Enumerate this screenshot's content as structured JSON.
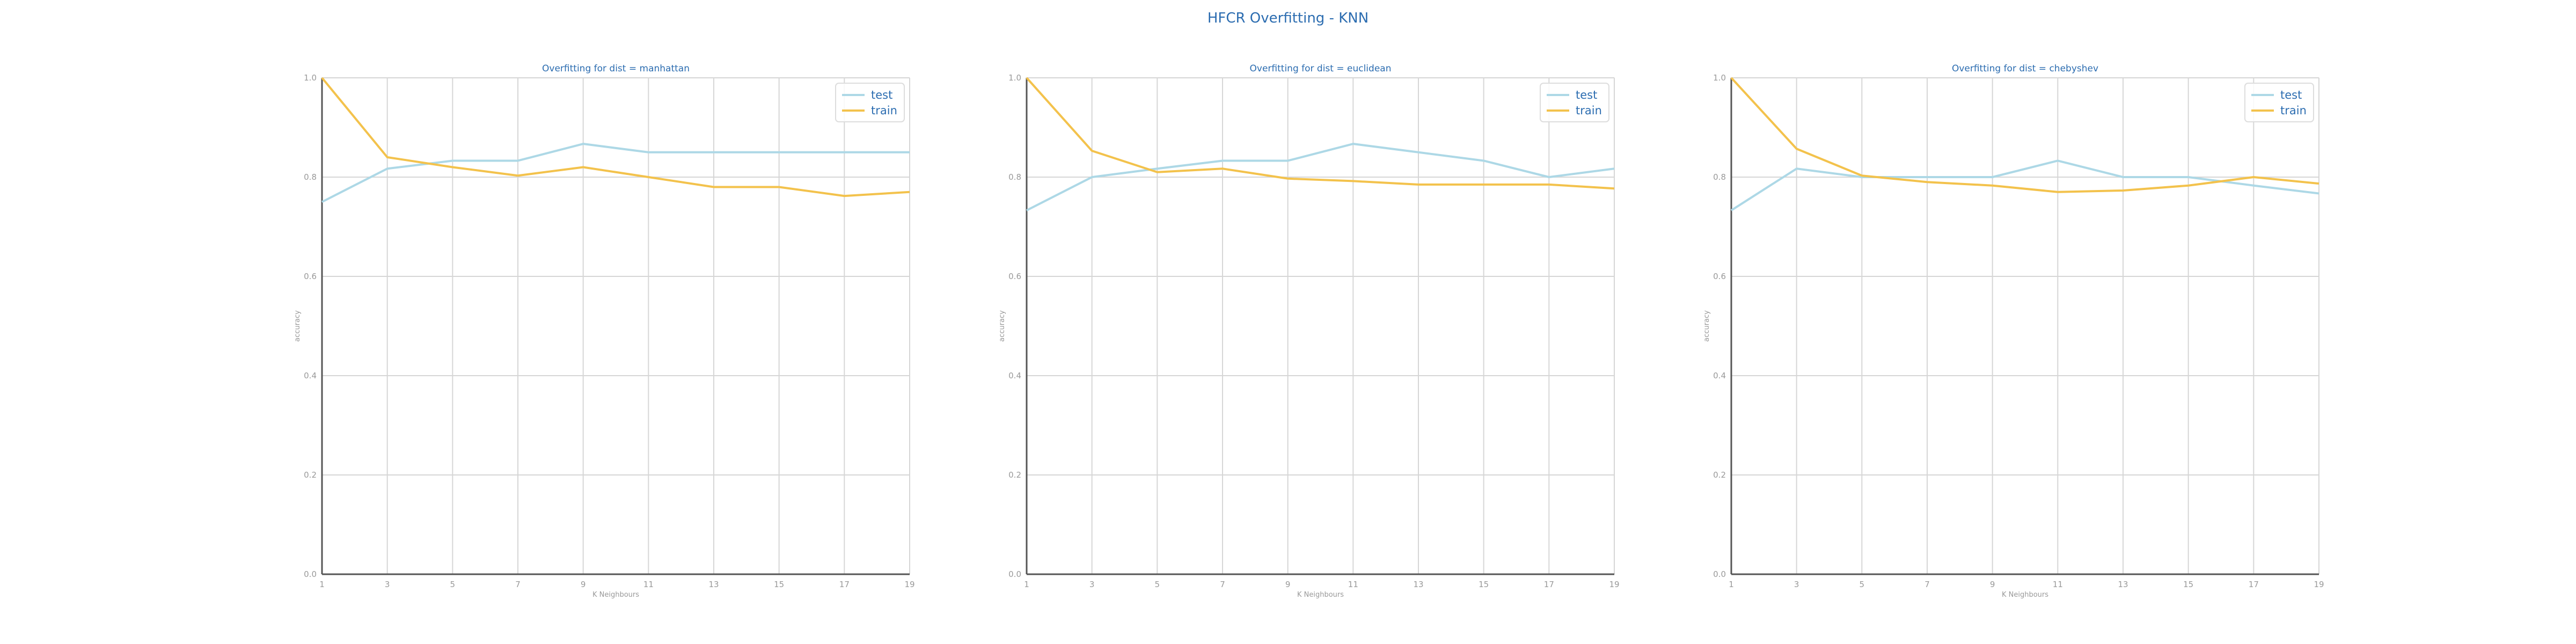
{
  "figure": {
    "title": "HFCR Overfitting - KNN",
    "title_color": "#2b6cb0",
    "colors": {
      "test": "#add8e6",
      "train": "#f3c24c",
      "axis_text": "#999999",
      "grid": "#d6d6d6",
      "panel_title": "#2b6cb0",
      "spine": "#555555"
    }
  },
  "chart_data": [
    {
      "type": "line",
      "title": "Overfitting for dist = manhattan",
      "xlabel": "K Neighbours",
      "ylabel": "accuracy",
      "xlim": [
        1,
        19
      ],
      "ylim": [
        0.0,
        1.0
      ],
      "x": [
        1,
        3,
        5,
        7,
        9,
        11,
        13,
        15,
        17,
        19
      ],
      "xticks": [
        "1",
        "3",
        "5",
        "7",
        "9",
        "11",
        "13",
        "15",
        "17",
        "19"
      ],
      "yticks": [
        "0.0",
        "0.2",
        "0.4",
        "0.6",
        "0.8",
        "1.0"
      ],
      "grid": true,
      "legend": "top-right",
      "series": [
        {
          "name": "test",
          "color": "#add8e6",
          "values": [
            0.75,
            0.817,
            0.833,
            0.833,
            0.867,
            0.85,
            0.85,
            0.85,
            0.85,
            0.85
          ]
        },
        {
          "name": "train",
          "color": "#f3c24c",
          "values": [
            1.0,
            0.84,
            0.82,
            0.803,
            0.82,
            0.8,
            0.78,
            0.78,
            0.762,
            0.77
          ]
        }
      ]
    },
    {
      "type": "line",
      "title": "Overfitting for dist = euclidean",
      "xlabel": "K Neighbours",
      "ylabel": "accuracy",
      "xlim": [
        1,
        19
      ],
      "ylim": [
        0.0,
        1.0
      ],
      "x": [
        1,
        3,
        5,
        7,
        9,
        11,
        13,
        15,
        17,
        19
      ],
      "xticks": [
        "1",
        "3",
        "5",
        "7",
        "9",
        "11",
        "13",
        "15",
        "17",
        "19"
      ],
      "yticks": [
        "0.0",
        "0.2",
        "0.4",
        "0.6",
        "0.8",
        "1.0"
      ],
      "grid": true,
      "legend": "top-right",
      "series": [
        {
          "name": "test",
          "color": "#add8e6",
          "values": [
            0.733,
            0.8,
            0.817,
            0.833,
            0.833,
            0.867,
            0.85,
            0.833,
            0.8,
            0.817
          ]
        },
        {
          "name": "train",
          "color": "#f3c24c",
          "values": [
            1.0,
            0.853,
            0.81,
            0.817,
            0.797,
            0.792,
            0.785,
            0.785,
            0.785,
            0.777
          ]
        }
      ]
    },
    {
      "type": "line",
      "title": "Overfitting for dist = chebyshev",
      "xlabel": "K Neighbours",
      "ylabel": "accuracy",
      "xlim": [
        1,
        19
      ],
      "ylim": [
        0.0,
        1.0
      ],
      "x": [
        1,
        3,
        5,
        7,
        9,
        11,
        13,
        15,
        17,
        19
      ],
      "xticks": [
        "1",
        "3",
        "5",
        "7",
        "9",
        "11",
        "13",
        "15",
        "17",
        "19"
      ],
      "yticks": [
        "0.0",
        "0.2",
        "0.4",
        "0.6",
        "0.8",
        "1.0"
      ],
      "grid": true,
      "legend": "top-right",
      "series": [
        {
          "name": "test",
          "color": "#add8e6",
          "values": [
            0.733,
            0.817,
            0.8,
            0.8,
            0.8,
            0.833,
            0.8,
            0.8,
            0.783,
            0.767
          ]
        },
        {
          "name": "train",
          "color": "#f3c24c",
          "values": [
            1.0,
            0.857,
            0.803,
            0.79,
            0.783,
            0.77,
            0.773,
            0.783,
            0.8,
            0.787
          ]
        }
      ]
    }
  ]
}
